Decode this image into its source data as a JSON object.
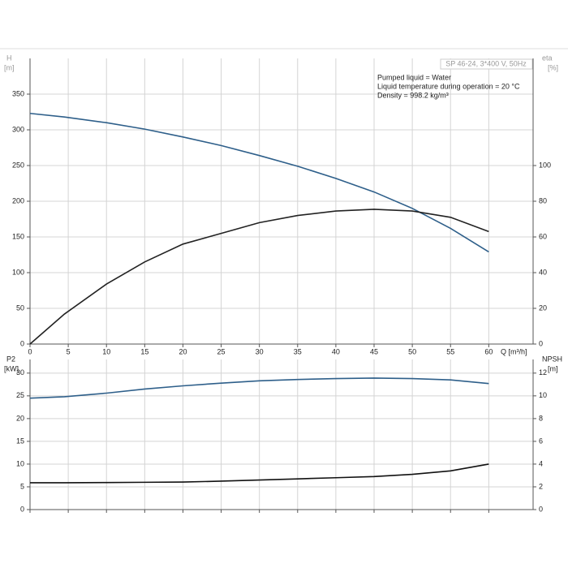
{
  "chart_data": [
    {
      "type": "line",
      "model": "SP 46-24, 3*400 V, 50Hz",
      "annotations": [
        "Pumped liquid = Water",
        "Liquid temperature during operation = 20 °C",
        "Density = 998.2 kg/m³"
      ],
      "ylabel": "H",
      "yunit": "[m]",
      "y2label": "eta",
      "y2unit": "[%]",
      "xlabel": "Q [m³/h]",
      "x": [
        0,
        4.5,
        10,
        15,
        20,
        25,
        30,
        35,
        40,
        45,
        50,
        55,
        60
      ],
      "xlim": [
        0,
        65.8
      ],
      "xticks": [
        0,
        5,
        10,
        15,
        20,
        25,
        30,
        35,
        40,
        45,
        50,
        55,
        60
      ],
      "ylim": [
        0,
        400
      ],
      "yticks": [
        0,
        50,
        100,
        150,
        200,
        250,
        300,
        350
      ],
      "y2lim": [
        0,
        160
      ],
      "y2ticks": [
        0,
        20,
        40,
        60,
        80,
        100
      ],
      "grid": true,
      "series": [
        {
          "name": "H",
          "color": "#2e5f8a",
          "values": [
            323,
            318,
            310,
            301,
            290,
            278,
            264,
            249,
            232,
            213,
            190,
            162,
            129
          ]
        },
        {
          "name": "eta",
          "color": "#222222",
          "axis": "y2",
          "values": [
            0,
            16.8,
            33.6,
            46,
            56,
            62,
            68,
            72,
            74.5,
            75.5,
            74.5,
            71,
            63
          ]
        }
      ]
    },
    {
      "type": "line",
      "ylabel": "P2",
      "yunit": "[kW]",
      "y2label": "NPSH",
      "y2unit": "[m]",
      "x": [
        0,
        4.5,
        10,
        15,
        20,
        25,
        30,
        35,
        40,
        45,
        50,
        55,
        60
      ],
      "xlim": [
        0,
        65.8
      ],
      "xticks": [
        0,
        5,
        10,
        15,
        20,
        25,
        30,
        35,
        40,
        45,
        50,
        55,
        60
      ],
      "ylim": [
        0,
        33
      ],
      "yticks": [
        0,
        5,
        10,
        15,
        20,
        25,
        30
      ],
      "y2lim": [
        0,
        13.2
      ],
      "y2ticks": [
        0,
        2,
        4,
        6,
        8,
        10,
        12
      ],
      "grid": true,
      "series": [
        {
          "name": "P2",
          "color": "#2e5f8a",
          "values": [
            24.5,
            24.8,
            25.6,
            26.5,
            27.2,
            27.8,
            28.3,
            28.6,
            28.8,
            28.9,
            28.8,
            28.5,
            27.7
          ]
        },
        {
          "name": "NPSH",
          "color": "#111111",
          "axis": "y2",
          "values": [
            2.36,
            2.36,
            2.38,
            2.4,
            2.42,
            2.5,
            2.6,
            2.7,
            2.8,
            2.9,
            3.1,
            3.4,
            4.0
          ]
        }
      ]
    }
  ]
}
